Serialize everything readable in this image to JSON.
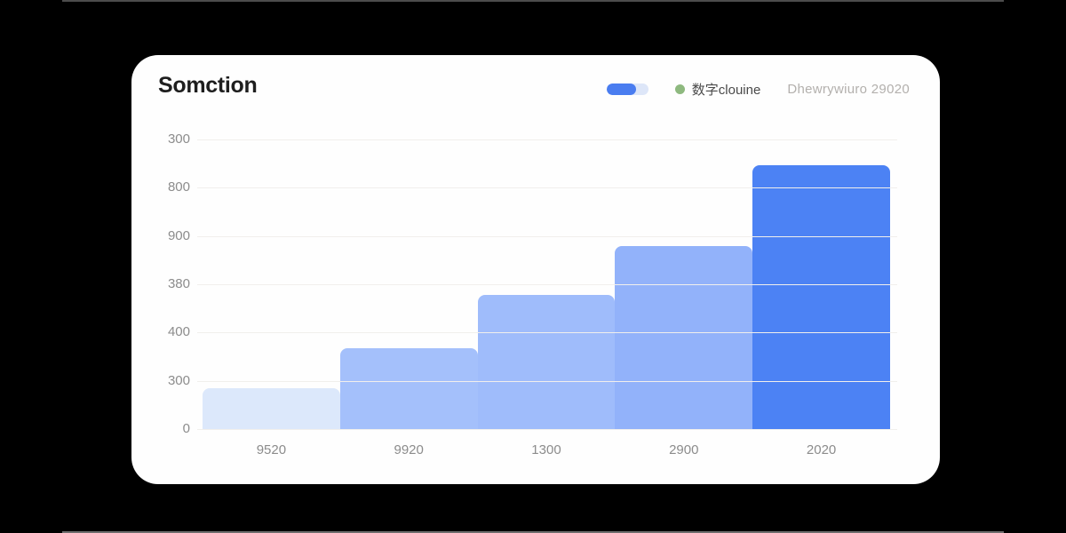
{
  "page": {
    "background_color": "#000000"
  },
  "card": {
    "title": "Somction",
    "legend": {
      "pill": {
        "track_color": "#dde6f8",
        "fill_color": "#4a7df0",
        "fill_ratio": 0.7
      },
      "series": {
        "dot_color": "#8eb97f",
        "label": "数字clouine"
      },
      "note": "Dhewrywiuro 29020"
    }
  },
  "chart_data": {
    "type": "bar",
    "title": "Somction",
    "categories": [
      "9520",
      "9920",
      "1300",
      "2900",
      "2020"
    ],
    "values": [
      42,
      84,
      139,
      190,
      273
    ],
    "height_pct": [
      14.1,
      27.9,
      46.3,
      63.2,
      91.1
    ],
    "bar_colors": [
      "#dce8fb",
      "#a4c0fb",
      "#9fbcfb",
      "#92b2fa",
      "#4c82f4"
    ],
    "y_ticks_top_to_bottom": [
      "300",
      "800",
      "900",
      "380",
      "400",
      "300",
      "0"
    ],
    "ylim": [
      0,
      300
    ],
    "xlabel": "",
    "ylabel": "",
    "grid": true,
    "gridline_color": "#f1efec",
    "axis_text_color": "#8c8c8c",
    "legend_position": "top-right"
  }
}
